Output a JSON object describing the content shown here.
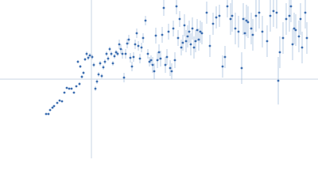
{
  "chart_data": {
    "type": "scatter",
    "color": "#3b6db0",
    "error_color": "#a9c0de",
    "xlim": [
      -115,
      285
    ],
    "ylim": [
      -100,
      100
    ],
    "x": [
      -57,
      -54,
      -52,
      -49,
      -47,
      -43,
      -40,
      -37,
      -34,
      -31,
      -28,
      -25,
      -22,
      -19,
      -17,
      -15,
      -14,
      -12,
      -10,
      -8,
      -6,
      -4,
      -2,
      1,
      3,
      5,
      7,
      9,
      11,
      13,
      15,
      17,
      19,
      21,
      23,
      25,
      27,
      29,
      31,
      33,
      35,
      37,
      39,
      41,
      43,
      45,
      47,
      49,
      51,
      53,
      55,
      57,
      59,
      61,
      63,
      65,
      68,
      71,
      73,
      75,
      77,
      79,
      81,
      83,
      85,
      87,
      89,
      91,
      93,
      95,
      97,
      99,
      101,
      103,
      105,
      107,
      109,
      111,
      113,
      115,
      117,
      119,
      121,
      123,
      125,
      127,
      129,
      131,
      133,
      135,
      137,
      139,
      145,
      149,
      153,
      157,
      161,
      165,
      168,
      171,
      175,
      177,
      181,
      185,
      189,
      191,
      193,
      195,
      197,
      201,
      203,
      207,
      211,
      215,
      221,
      225,
      229,
      233,
      235,
      237,
      241,
      245,
      249,
      251,
      253,
      255,
      257,
      261,
      263,
      265,
      269,
      271
    ],
    "values": [
      -44,
      -44,
      -39,
      -36,
      -34,
      -30,
      -27,
      -28,
      -17,
      -11,
      -12,
      -12,
      -17,
      -9,
      22,
      -6,
      16,
      3,
      8,
      25,
      32,
      27,
      30,
      28,
      18,
      -12,
      -3,
      6,
      20,
      4,
      15,
      22,
      32,
      26,
      38,
      32,
      20,
      29,
      34,
      32,
      44,
      38,
      32,
      2,
      32,
      45,
      50,
      27,
      16,
      28,
      44,
      58,
      42,
      26,
      40,
      52,
      74,
      32,
      22,
      24,
      18,
      10,
      55,
      24,
      34,
      26,
      56,
      90,
      18,
      28,
      60,
      14,
      10,
      64,
      24,
      92,
      52,
      76,
      40,
      46,
      68,
      48,
      54,
      60,
      44,
      64,
      40,
      48,
      62,
      50,
      60,
      58,
      84,
      42,
      70,
      78,
      80,
      16,
      28,
      92,
      76,
      80,
      64,
      60,
      14,
      76,
      58,
      74,
      72,
      64,
      56,
      80,
      84,
      60,
      48,
      80,
      86,
      84,
      -2,
      34,
      52,
      76,
      80,
      92,
      44,
      64,
      62,
      54,
      76,
      40,
      84,
      52
    ],
    "errors": [
      1,
      1,
      1,
      1,
      1,
      1,
      1,
      1,
      1,
      1,
      1,
      1,
      1,
      1,
      2,
      2,
      2,
      2,
      2,
      2,
      3,
      3,
      3,
      3,
      3,
      3,
      3,
      3,
      3,
      3,
      3,
      3,
      3,
      3,
      3,
      3,
      3,
      3,
      3,
      3,
      6,
      6,
      6,
      6,
      6,
      6,
      6,
      6,
      6,
      6,
      6,
      6,
      6,
      6,
      6,
      6,
      6,
      6,
      6,
      6,
      10,
      10,
      10,
      10,
      10,
      10,
      10,
      10,
      10,
      10,
      10,
      10,
      10,
      10,
      10,
      10,
      10,
      10,
      10,
      10,
      14,
      14,
      14,
      14,
      14,
      14,
      14,
      14,
      14,
      14,
      14,
      14,
      14,
      14,
      14,
      14,
      14,
      14,
      14,
      14,
      20,
      20,
      20,
      20,
      20,
      20,
      20,
      20,
      20,
      20,
      20,
      20,
      20,
      20,
      20,
      20,
      20,
      20,
      30,
      20,
      20,
      20,
      20,
      20,
      20,
      20,
      20,
      20,
      20,
      20,
      20,
      20
    ]
  }
}
